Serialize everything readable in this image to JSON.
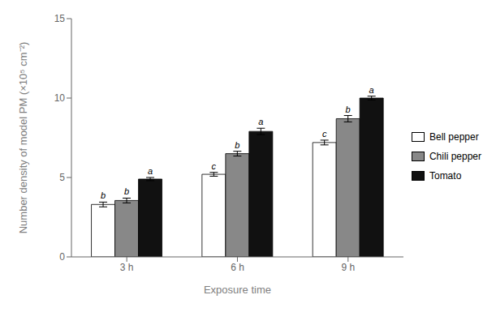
{
  "chart_data": {
    "type": "bar",
    "categories": [
      "3 h",
      "6 h",
      "9 h"
    ],
    "xlabel": "Exposure time",
    "ylabel": "Number density of model PM (×10⁵ cm⁻²)",
    "ylim": [
      0,
      15
    ],
    "yticks": [
      0,
      5,
      10,
      15
    ],
    "grid": false,
    "legend": "right",
    "series": [
      {
        "name": "Bell pepper",
        "color": "#ffffff",
        "values": [
          3.3,
          5.2,
          7.2
        ],
        "errors": [
          0.15,
          0.12,
          0.15
        ],
        "letters": [
          "b",
          "c",
          "c"
        ]
      },
      {
        "name": "Chili pepper",
        "color": "#888888",
        "values": [
          3.55,
          6.5,
          8.7
        ],
        "errors": [
          0.15,
          0.15,
          0.2
        ],
        "letters": [
          "b",
          "b",
          "b"
        ]
      },
      {
        "name": "Tomato",
        "color": "#111111",
        "values": [
          4.9,
          7.9,
          10.0
        ],
        "errors": [
          0.1,
          0.2,
          0.12
        ],
        "letters": [
          "a",
          "a",
          "a"
        ]
      }
    ]
  }
}
